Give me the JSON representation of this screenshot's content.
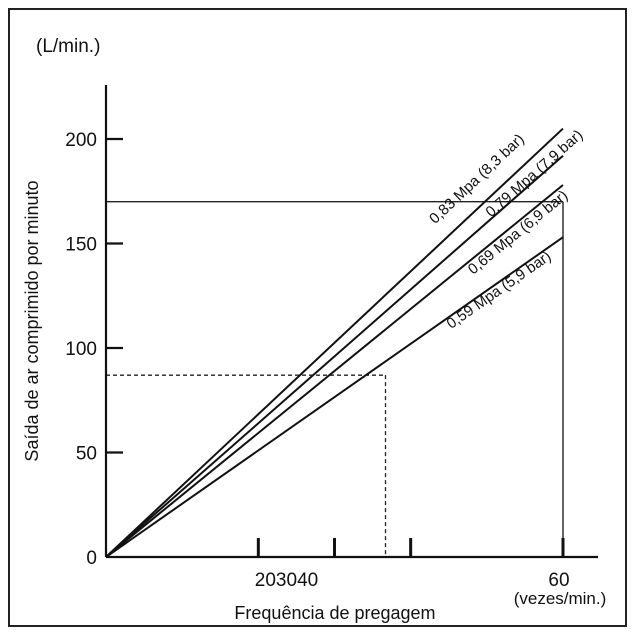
{
  "chart_data": {
    "type": "line",
    "unit_label": "(L/min.)",
    "ylabel": "Saída de ar comprimido por minuto",
    "xlabel": "Frequência de pregagem",
    "x_unit_label": "(vezes/min.)",
    "y_ticks": [
      0,
      50,
      100,
      150,
      200
    ],
    "y_tick_labels": [
      "0",
      "50",
      "100",
      "150",
      "200"
    ],
    "x_ticks": [
      0,
      20,
      30,
      40,
      60
    ],
    "x_tick_labels": [
      {
        "text": "203040",
        "x": 30
      },
      {
        "text": "60",
        "x": 60
      }
    ],
    "xlim": [
      0,
      60
    ],
    "ylim": [
      0,
      225
    ],
    "series": [
      {
        "name": "0,83 Mpa (8,3 bar)",
        "x": [
          0,
          60
        ],
        "y": [
          0,
          205
        ]
      },
      {
        "name": "0,79 Mpa (7,9 bar)",
        "x": [
          0,
          60
        ],
        "y": [
          0,
          192
        ]
      },
      {
        "name": "0,69 Mpa (6,9 bar)",
        "x": [
          0,
          60
        ],
        "y": [
          0,
          178
        ]
      },
      {
        "name": "0,59 Mpa (5,9 bar)",
        "x": [
          0,
          60
        ],
        "y": [
          0,
          153
        ]
      }
    ],
    "reference_box": {
      "x_max": 60,
      "y_value": 170
    },
    "dashed_guide": {
      "x": 30,
      "y": 87
    }
  }
}
